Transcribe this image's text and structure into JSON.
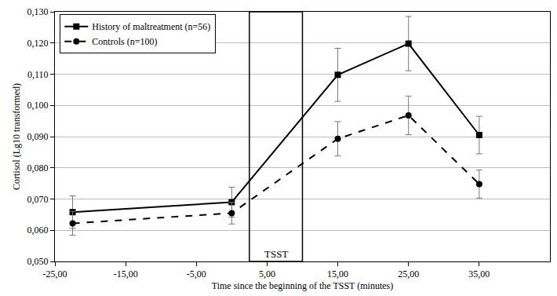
{
  "chart_data": {
    "type": "line",
    "x_title": "Time since the beginning of the TSST (minutes)",
    "y_title": "Cortisol (Lg10 transformed)",
    "xlim": [
      -25,
      45
    ],
    "xticks": [
      {
        "value": -25,
        "label": "-25,00"
      },
      {
        "value": -15,
        "label": "-15,00"
      },
      {
        "value": -5,
        "label": "-5,00"
      },
      {
        "value": 5,
        "label": "5,00"
      },
      {
        "value": 15,
        "label": "15,00"
      },
      {
        "value": 25,
        "label": "25,00"
      },
      {
        "value": 35,
        "label": "35,00"
      }
    ],
    "ylim": [
      0.05,
      0.13
    ],
    "yticks": [
      {
        "value": 0.05,
        "label": "0,050"
      },
      {
        "value": 0.06,
        "label": "0,060"
      },
      {
        "value": 0.07,
        "label": "0,070"
      },
      {
        "value": 0.08,
        "label": "0,080"
      },
      {
        "value": 0.09,
        "label": "0,090"
      },
      {
        "value": 0.1,
        "label": "0,100"
      },
      {
        "value": 0.11,
        "label": "0,110"
      },
      {
        "value": 0.12,
        "label": "0,120"
      },
      {
        "value": 0.13,
        "label": "0,130"
      }
    ],
    "grid": true,
    "legend": "top left",
    "annotations": [
      {
        "text": "TSST",
        "x0": 2.5,
        "x1": 10
      }
    ],
    "x": [
      -22.5,
      0,
      15,
      25,
      35
    ],
    "series": [
      {
        "name": "History of maltreatment (n=56)",
        "color": "#000000",
        "marker": "square",
        "line_style": "solid",
        "values": [
          0.0658,
          0.069,
          0.1098,
          0.1198,
          0.0905
        ],
        "error": [
          0.0052,
          0.0048,
          0.0085,
          0.0087,
          0.006
        ]
      },
      {
        "name": "Controls (n=100)",
        "color": "#000000",
        "marker": "circle",
        "line_style": "dash",
        "values": [
          0.0622,
          0.0655,
          0.0893,
          0.0968,
          0.0748
        ],
        "error": [
          0.0038,
          0.0035,
          0.0055,
          0.0062,
          0.0045
        ]
      }
    ]
  }
}
